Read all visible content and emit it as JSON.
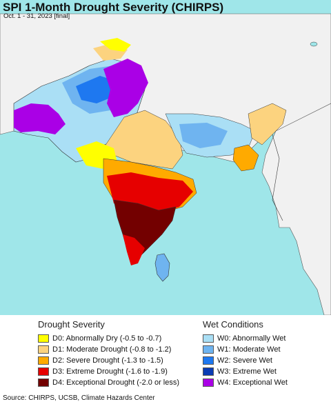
{
  "header": {
    "title": "SPI 1-Month Drought Severity (CHIRPS)",
    "subtitle": "Oct. 1 - 31, 2023 [final]"
  },
  "legend": {
    "drought": {
      "heading": "Drought Severity",
      "items": [
        {
          "label": "D0: Abnormally Dry (-0.5 to -0.7)",
          "color": "#ffff00"
        },
        {
          "label": "D1: Moderate Drought (-0.8 to -1.2)",
          "color": "#fcd37f"
        },
        {
          "label": "D2: Severe Drought (-1.3 to -1.5)",
          "color": "#ffaa00"
        },
        {
          "label": "D3: Extreme Drought (-1.6 to -1.9)",
          "color": "#e60000"
        },
        {
          "label": "D4: Exceptional Drought (-2.0 or less)",
          "color": "#730000"
        }
      ]
    },
    "wet": {
      "heading": "Wet Conditions",
      "items": [
        {
          "label": "W0: Abnormally Wet",
          "color": "#aadff5"
        },
        {
          "label": "W1: Moderate Wet",
          "color": "#6fb4f0"
        },
        {
          "label": "W2: Severe Wet",
          "color": "#1e78f0"
        },
        {
          "label": "W3: Extreme Wet",
          "color": "#0a3cb4"
        },
        {
          "label": "W4: Exceptional Wet",
          "color": "#aa00e6"
        }
      ]
    }
  },
  "source": "Source: CHIRPS, UCSB, Climate Hazards Center",
  "colors": {
    "ocean": "#9fe6e9",
    "land": "#f1f1f1",
    "borders": "#222222"
  }
}
